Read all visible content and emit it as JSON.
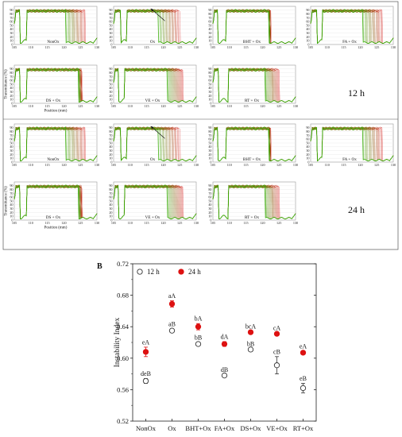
{
  "panel_a": {
    "time_labels": [
      "12 h",
      "24 h"
    ],
    "x_axis_label": "Position (mm)",
    "y_axis_label": "Transmittance (%)",
    "x_ticks": [
      "105",
      "110",
      "115",
      "120",
      "125",
      "130"
    ],
    "y_ticks": [
      "0",
      "10",
      "20",
      "30",
      "40",
      "50",
      "60",
      "70",
      "80",
      "90"
    ],
    "panels_12h": [
      "NonOx",
      "Ox",
      "BHT + Ox",
      "FA + Ox",
      "DS + Ox",
      "VE + Ox",
      "RT + Ox"
    ],
    "panels_24h": [
      "NonOx",
      "Ox",
      "BHT + Ox",
      "FA + Ox",
      "DS + Ox",
      "VE + Ox",
      "RT + Ox"
    ],
    "colors": {
      "early_curve": "#d40000",
      "late_curve": "#33aa00",
      "frame": "#9a9a9a"
    }
  },
  "chart_data": {
    "type": "scatter",
    "panel_label": "B",
    "categories": [
      "NonOx",
      "Ox",
      "BHT+Ox",
      "FA+Ox",
      "DS+Ox",
      "VE+Ox",
      "RT+Ox"
    ],
    "ylabel": "Instability Index",
    "ylim": [
      0.52,
      0.72
    ],
    "yticks": [
      "0.52",
      "0.56",
      "0.60",
      "0.64",
      "0.68",
      "0.72"
    ],
    "legend_placement": "top-left",
    "series": [
      {
        "name": "12 h",
        "marker": "open-circle",
        "color": "#333333",
        "values": [
          0.571,
          0.635,
          0.618,
          0.578,
          0.611,
          0.591,
          0.562
        ],
        "errors": [
          0.003,
          0.002,
          0.002,
          0.001,
          0.001,
          0.011,
          0.006
        ],
        "labels": [
          "deB",
          "aB",
          "bB",
          "dB",
          "bB",
          "cB",
          "eB"
        ]
      },
      {
        "name": "24 h",
        "marker": "filled-circle",
        "color": "#dd1111",
        "values": [
          0.608,
          0.669,
          0.64,
          0.618,
          0.633,
          0.631,
          0.607
        ],
        "errors": [
          0.006,
          0.004,
          0.004,
          0.003,
          0.001,
          0.001,
          0.002
        ],
        "labels": [
          "eA",
          "aA",
          "bA",
          "dA",
          "bcA",
          "cA",
          "eA"
        ]
      }
    ]
  }
}
